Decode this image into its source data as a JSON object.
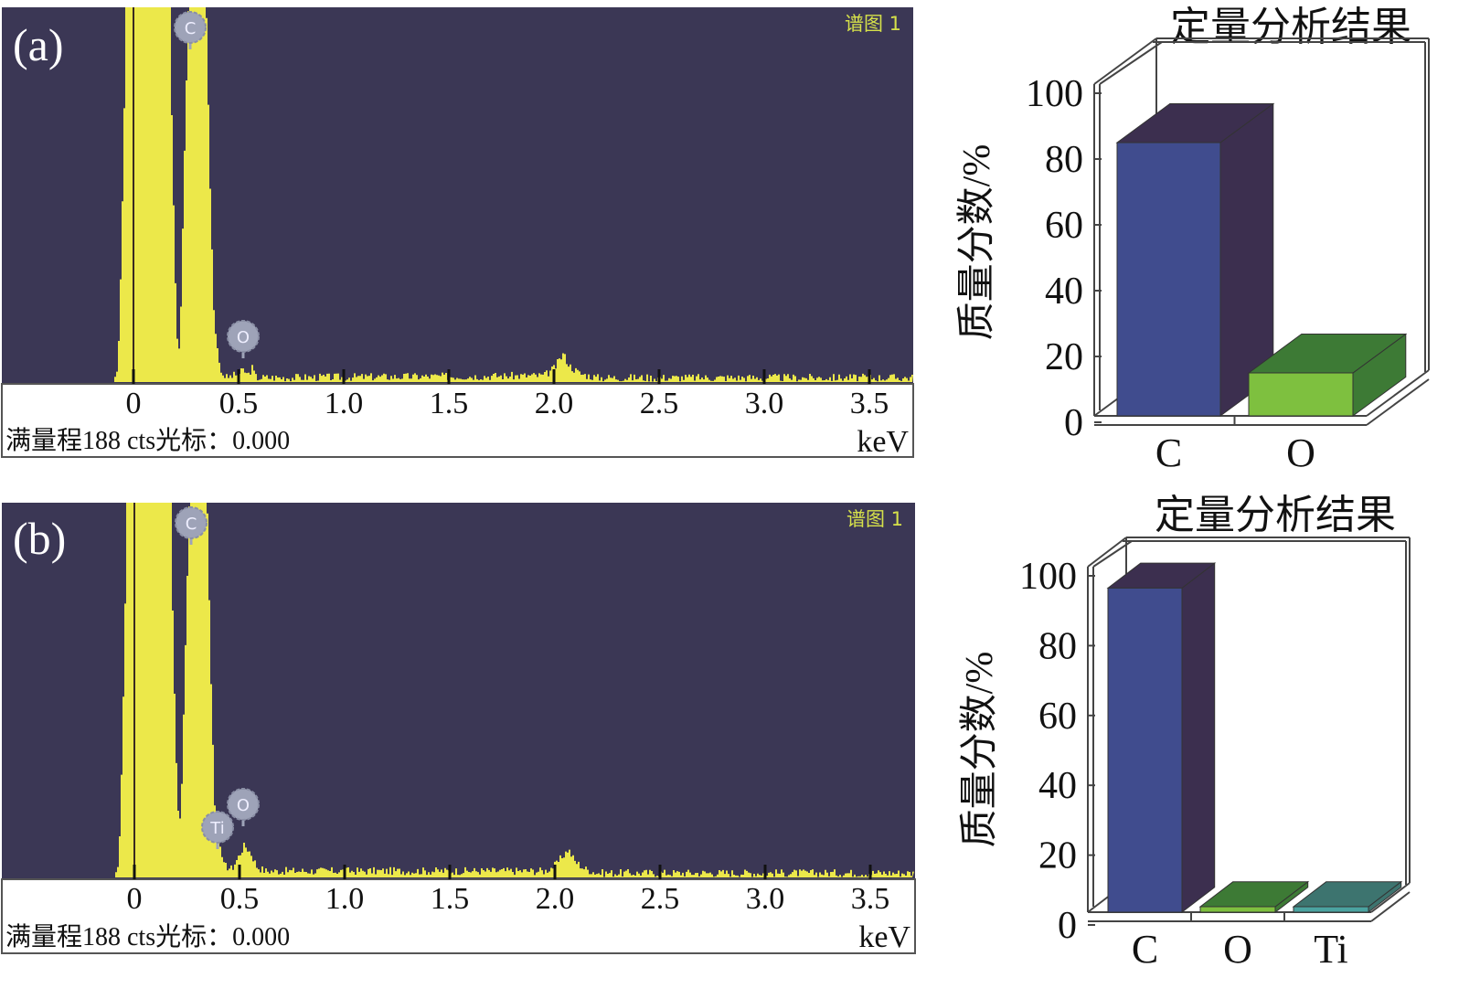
{
  "colors": {
    "spectrum_bg": "#3b3755",
    "spectrum_fill": "#ece84a",
    "spectrum_label": "#d6e14a",
    "marker": "#9ea3b8",
    "bar_c_front": "#404c8e",
    "bar_c_side": "#3c2f4f",
    "bar_o_front": "#7ec03f",
    "bar_o_top": "#3d7a35",
    "bar_ti_front": "#4aa3a0",
    "bar_ti_top": "#3d746f"
  },
  "chart_data": [
    {
      "type": "area",
      "panel_label": "(a)",
      "spectrum_name": "谱图 1",
      "xlabel": "keV",
      "x_ticks": [
        "0",
        "0.5",
        "1.0",
        "1.5",
        "2.0",
        "2.5",
        "3.0",
        "3.5"
      ],
      "xlim": [
        -0.63,
        3.7
      ],
      "ylim": [
        0,
        188
      ],
      "footer": "满量程188 cts光标：0.000",
      "peak_markers": [
        {
          "element": "C",
          "kev": 0.27
        },
        {
          "element": "O",
          "kev": 0.52
        }
      ],
      "points_kev_cts": [
        [
          -0.1,
          0
        ],
        [
          -0.08,
          6
        ],
        [
          -0.07,
          30
        ],
        [
          -0.05,
          120
        ],
        [
          -0.04,
          200
        ],
        [
          0.17,
          200
        ],
        [
          0.18,
          120
        ],
        [
          0.2,
          30
        ],
        [
          0.21,
          11
        ],
        [
          0.22,
          30
        ],
        [
          0.24,
          120
        ],
        [
          0.26,
          200
        ],
        [
          0.34,
          200
        ],
        [
          0.36,
          100
        ],
        [
          0.38,
          30
        ],
        [
          0.41,
          5
        ],
        [
          0.44,
          2
        ],
        [
          0.5,
          4
        ],
        [
          0.52,
          6
        ],
        [
          0.54,
          3
        ],
        [
          0.56,
          7
        ],
        [
          0.58,
          2
        ],
        [
          1.95,
          3
        ],
        [
          2.0,
          7
        ],
        [
          2.04,
          14
        ],
        [
          2.07,
          8
        ],
        [
          2.12,
          4
        ],
        [
          2.2,
          2
        ],
        [
          3.7,
          2
        ]
      ]
    },
    {
      "type": "bar",
      "title": "定量分析结果",
      "ylabel": "质量分数/%",
      "ylim": [
        0,
        100
      ],
      "y_ticks": [
        "0",
        "20",
        "40",
        "60",
        "80",
        "100"
      ],
      "categories": [
        "C",
        "O"
      ],
      "values": [
        85,
        15
      ]
    },
    {
      "type": "area",
      "panel_label": "(b)",
      "spectrum_name": "谱图 1",
      "xlabel": "keV",
      "x_ticks": [
        "0",
        "0.5",
        "1.0",
        "1.5",
        "2.0",
        "2.5",
        "3.0",
        "3.5"
      ],
      "xlim": [
        -0.63,
        3.7
      ],
      "ylim": [
        0,
        188
      ],
      "footer": "满量程188 cts光标：0.000",
      "peak_markers": [
        {
          "element": "C",
          "kev": 0.27
        },
        {
          "element": "O",
          "kev": 0.52
        },
        {
          "element": "Ti",
          "kev": 0.4
        }
      ],
      "points_kev_cts": [
        [
          -0.1,
          0
        ],
        [
          -0.08,
          6
        ],
        [
          -0.07,
          30
        ],
        [
          -0.05,
          120
        ],
        [
          -0.04,
          200
        ],
        [
          0.17,
          200
        ],
        [
          0.18,
          120
        ],
        [
          0.2,
          40
        ],
        [
          0.21,
          25
        ],
        [
          0.22,
          40
        ],
        [
          0.24,
          120
        ],
        [
          0.26,
          200
        ],
        [
          0.34,
          200
        ],
        [
          0.36,
          100
        ],
        [
          0.38,
          30
        ],
        [
          0.42,
          6
        ],
        [
          0.46,
          4
        ],
        [
          0.5,
          12
        ],
        [
          0.52,
          16
        ],
        [
          0.55,
          12
        ],
        [
          0.58,
          5
        ],
        [
          0.62,
          3
        ],
        [
          1.95,
          3
        ],
        [
          2.0,
          6
        ],
        [
          2.06,
          14
        ],
        [
          2.09,
          8
        ],
        [
          2.14,
          4
        ],
        [
          2.2,
          2
        ],
        [
          3.7,
          2
        ]
      ]
    },
    {
      "type": "bar",
      "title": "定量分析结果",
      "ylabel": "质量分数/%",
      "ylim": [
        0,
        100
      ],
      "y_ticks": [
        "0",
        "20",
        "40",
        "60",
        "80",
        "100"
      ],
      "categories": [
        "C",
        "O",
        "Ti"
      ],
      "values": [
        96.5,
        2,
        1.5
      ]
    }
  ]
}
